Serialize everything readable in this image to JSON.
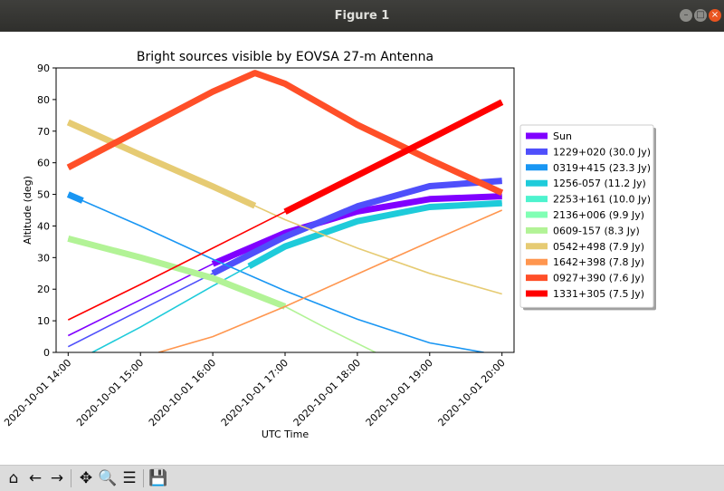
{
  "window": {
    "title": "Figure 1",
    "minimize_glyph": "–",
    "maximize_glyph": "□",
    "close_glyph": "×"
  },
  "toolbar": {
    "tools": [
      {
        "name": "home-icon",
        "glyph": "⌂"
      },
      {
        "name": "back-icon",
        "glyph": "←"
      },
      {
        "name": "forward-icon",
        "glyph": "→"
      },
      {
        "name": "pan-icon",
        "glyph": "✥"
      },
      {
        "name": "zoom-icon",
        "glyph": "🔍"
      },
      {
        "name": "configure-subplots-icon",
        "glyph": "☰"
      },
      {
        "name": "save-icon",
        "glyph": "💾"
      }
    ]
  },
  "chart_data": {
    "type": "line",
    "title": "Bright sources visible by EOVSA 27-m Antenna",
    "xlabel": "UTC Time",
    "ylabel": "Altitude (deg)",
    "xlim": [
      "2020-10-01 13:50",
      "2020-10-01 20:10"
    ],
    "ylim": [
      0,
      90
    ],
    "xticks": [
      "2020-10-01 14:00",
      "2020-10-01 15:00",
      "2020-10-01 16:00",
      "2020-10-01 17:00",
      "2020-10-01 18:00",
      "2020-10-01 19:00",
      "2020-10-01 20:00"
    ],
    "yticks": [
      0,
      10,
      20,
      30,
      40,
      50,
      60,
      70,
      80,
      90
    ],
    "grid": false,
    "legend_position": "outside right",
    "series": [
      {
        "name": "Sun",
        "color": "#8000ff",
        "x": [
          "2020-10-01 14:00",
          "2020-10-01 16:00",
          "2020-10-01 17:00",
          "2020-10-01 18:00",
          "2020-10-01 19:00",
          "2020-10-01 20:00"
        ],
        "y": [
          5.3,
          28,
          37.8,
          44.6,
          48.5,
          49.4
        ],
        "visible_from": "2020-10-01 16:00"
      },
      {
        "name": "1229+020 (30.0 Jy)",
        "color": "#4f4ffb",
        "x": [
          "2020-10-01 14:00",
          "2020-10-01 16:00",
          "2020-10-01 17:00",
          "2020-10-01 18:00",
          "2020-10-01 19:00",
          "2020-10-01 20:00"
        ],
        "y": [
          1.8,
          25,
          36.6,
          46.2,
          52.6,
          54.3
        ],
        "visible_from": "2020-10-01 16:00"
      },
      {
        "name": "0319+415 (23.3 Jy)",
        "color": "#1996f3",
        "x": [
          "2020-10-01 14:00",
          "2020-10-01 15:00",
          "2020-10-01 16:00",
          "2020-10-01 17:00",
          "2020-10-01 18:00",
          "2020-10-01 19:00",
          "2020-10-01 19:45"
        ],
        "y": [
          50,
          40,
          29.5,
          19.5,
          10.5,
          3,
          0
        ],
        "visible_until": "2020-10-01 14:12"
      },
      {
        "name": "1256-057 (11.2 Jy)",
        "color": "#1ecbda",
        "x": [
          "2020-10-01 14:20",
          "2020-10-01 15:00",
          "2020-10-01 16:00",
          "2020-10-01 17:00",
          "2020-10-01 18:00",
          "2020-10-01 19:00",
          "2020-10-01 20:00"
        ],
        "y": [
          0,
          8,
          21,
          33.5,
          41.5,
          46,
          47.2
        ],
        "visible_from": "2020-10-01 16:30"
      },
      {
        "name": "2253+161 (10.0 Jy)",
        "color": "#4df3ce",
        "x": [],
        "y": []
      },
      {
        "name": "2136+006 (9.9 Jy)",
        "color": "#80ffb4",
        "x": [],
        "y": []
      },
      {
        "name": "0609-157 (8.3 Jy)",
        "color": "#b2f396",
        "x": [
          "2020-10-01 14:00",
          "2020-10-01 15:00",
          "2020-10-01 16:00",
          "2020-10-01 17:00",
          "2020-10-01 17:30",
          "2020-10-01 18:15"
        ],
        "y": [
          36,
          30,
          23.5,
          14.5,
          8.5,
          0
        ],
        "visible_until": "2020-10-01 17:00"
      },
      {
        "name": "0542+498 (7.9 Jy)",
        "color": "#e6cb73",
        "x": [
          "2020-10-01 14:00",
          "2020-10-01 15:00",
          "2020-10-01 16:00",
          "2020-10-01 17:00",
          "2020-10-01 18:00",
          "2020-10-01 19:00",
          "2020-10-01 20:00"
        ],
        "y": [
          72.8,
          62.5,
          52.5,
          42,
          33,
          25,
          18.5
        ],
        "visible_until": "2020-10-01 16:35"
      },
      {
        "name": "1642+398 (7.8 Jy)",
        "color": "#ff964f",
        "x": [
          "2020-10-01 15:15",
          "2020-10-01 16:00",
          "2020-10-01 17:00",
          "2020-10-01 18:00",
          "2020-10-01 19:00",
          "2020-10-01 20:00"
        ],
        "y": [
          0,
          5,
          14.5,
          24.8,
          35,
          45
        ]
      },
      {
        "name": "0927+390 (7.6 Jy)",
        "color": "#ff4f28",
        "x": [
          "2020-10-01 14:00",
          "2020-10-01 15:00",
          "2020-10-01 16:00",
          "2020-10-01 16:35",
          "2020-10-01 17:00",
          "2020-10-01 18:00",
          "2020-10-01 19:00",
          "2020-10-01 20:00"
        ],
        "y": [
          58.5,
          70.5,
          82.5,
          88.4,
          85,
          72,
          61,
          50.5
        ],
        "visible_from": "2020-10-01 14:00"
      },
      {
        "name": "1331+305 (7.5 Jy)",
        "color": "#ff0000",
        "x": [
          "2020-10-01 14:00",
          "2020-10-01 15:00",
          "2020-10-01 16:00",
          "2020-10-01 17:00",
          "2020-10-01 18:00",
          "2020-10-01 19:00",
          "2020-10-01 20:00"
        ],
        "y": [
          10.3,
          21.5,
          33,
          44.5,
          56,
          67.5,
          79.2
        ],
        "visible_from": "2020-10-01 17:00"
      }
    ]
  }
}
